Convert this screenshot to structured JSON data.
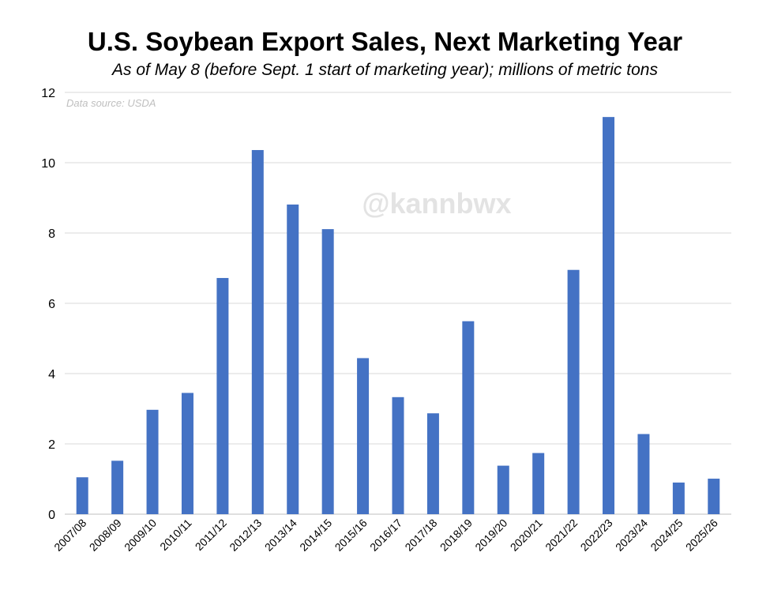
{
  "chart_data": {
    "type": "bar",
    "title": "U.S. Soybean Export Sales, Next Marketing Year",
    "subtitle": "As of May 8 (before Sept. 1 start of marketing year); millions of metric tons",
    "source_note": "Data source: USDA",
    "watermark": "@kannbwx",
    "xlabel": "",
    "ylabel": "",
    "ylim": [
      0,
      12
    ],
    "yticks": [
      0,
      2,
      4,
      6,
      8,
      10,
      12
    ],
    "grid": true,
    "legend": "none",
    "bar_color": "#4472c4",
    "categories": [
      "2007/08",
      "2008/09",
      "2009/10",
      "2010/11",
      "2011/12",
      "2012/13",
      "2013/14",
      "2014/15",
      "2015/16",
      "2016/17",
      "2017/18",
      "2018/19",
      "2019/20",
      "2020/21",
      "2021/22",
      "2022/23",
      "2023/24",
      "2024/25",
      "2025/26"
    ],
    "values": [
      1.05,
      1.52,
      2.97,
      3.45,
      6.72,
      10.36,
      8.81,
      8.11,
      4.44,
      3.33,
      2.87,
      5.49,
      1.38,
      1.74,
      6.95,
      11.3,
      2.28,
      0.9,
      1.01
    ]
  }
}
